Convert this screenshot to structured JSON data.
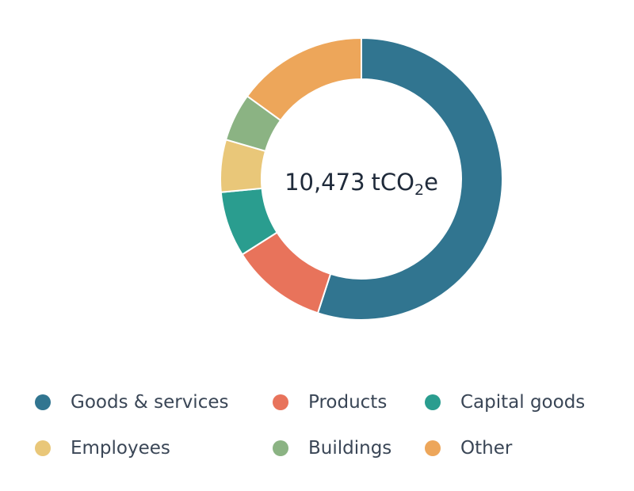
{
  "chart_data": {
    "type": "pie",
    "style": "donut",
    "center_label": {
      "value": "10,473",
      "unit_prefix": "tCO",
      "unit_subscript": "2",
      "unit_suffix": "e"
    },
    "categories": [
      "Goods & services",
      "Products",
      "Capital goods",
      "Employees",
      "Buildings",
      "Other"
    ],
    "values": [
      55.0,
      11.0,
      7.5,
      6.0,
      5.5,
      15.0
    ],
    "colors": [
      "#317590",
      "#e8735b",
      "#2a9d8f",
      "#e9c779",
      "#8bb383",
      "#eda65a"
    ],
    "legend_position": "bottom"
  }
}
